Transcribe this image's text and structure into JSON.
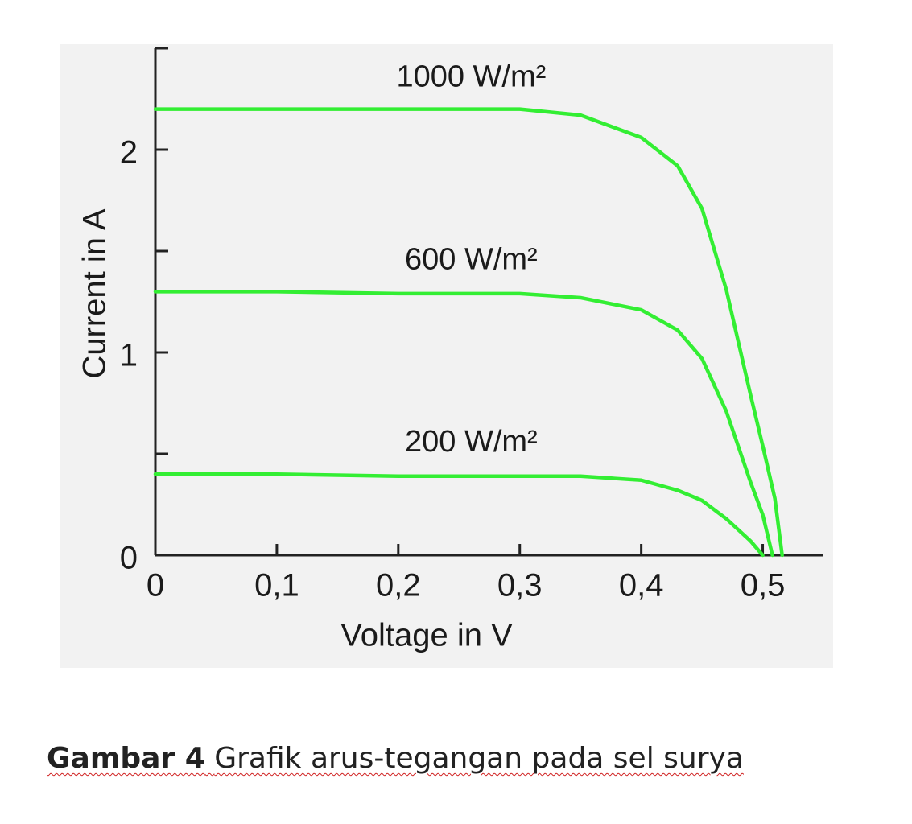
{
  "chart_data": {
    "type": "line",
    "xlabel": "Voltage in V",
    "ylabel": "Current in A",
    "xlim": [
      0,
      0.55
    ],
    "ylim": [
      0,
      2.5
    ],
    "xticks": [
      0,
      {
        "value": 0.1,
        "label": "0,1"
      },
      {
        "value": 0.2,
        "label": "0,2"
      },
      {
        "value": 0.3,
        "label": "0,3"
      },
      {
        "value": 0.4,
        "label": "0,4"
      },
      {
        "value": 0.5,
        "label": "0,5"
      }
    ],
    "yticks": [
      0,
      1,
      2
    ],
    "yminorticks": [
      0.5,
      1.5
    ],
    "series": [
      {
        "name": "1000 W/m²",
        "color": "#33ee33",
        "x": [
          0,
          0.1,
          0.2,
          0.3,
          0.35,
          0.4,
          0.43,
          0.45,
          0.47,
          0.49,
          0.5,
          0.51,
          0.516
        ],
        "values": [
          2.2,
          2.2,
          2.2,
          2.2,
          2.17,
          2.06,
          1.92,
          1.71,
          1.31,
          0.79,
          0.54,
          0.28,
          0
        ]
      },
      {
        "name": "600 W/m²",
        "color": "#33ee33",
        "x": [
          0,
          0.1,
          0.2,
          0.3,
          0.35,
          0.4,
          0.43,
          0.45,
          0.47,
          0.49,
          0.5,
          0.508
        ],
        "values": [
          1.3,
          1.3,
          1.29,
          1.29,
          1.27,
          1.21,
          1.11,
          0.97,
          0.71,
          0.36,
          0.2,
          0
        ]
      },
      {
        "name": "200 W/m²",
        "color": "#33ee33",
        "x": [
          0,
          0.1,
          0.2,
          0.3,
          0.35,
          0.4,
          0.43,
          0.45,
          0.47,
          0.49,
          0.5
        ],
        "values": [
          0.4,
          0.4,
          0.39,
          0.39,
          0.39,
          0.37,
          0.32,
          0.27,
          0.18,
          0.07,
          0
        ]
      }
    ]
  },
  "caption": {
    "label": "Gambar 4",
    "text": "Grafik arus-tegangan pada sel surya"
  }
}
